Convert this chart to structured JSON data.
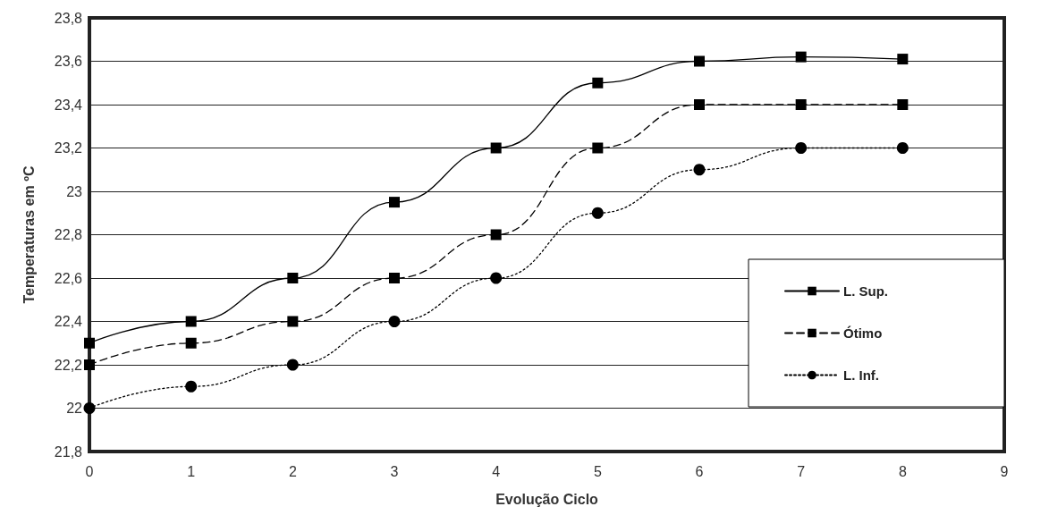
{
  "chart_data": {
    "type": "line",
    "xlabel": "Evolução Ciclo",
    "ylabel": "Temperaturas em ºC",
    "x": [
      0,
      1,
      2,
      3,
      4,
      5,
      6,
      7,
      8
    ],
    "series": [
      {
        "name": "L. Sup.",
        "color": "#000000",
        "marker": "square",
        "line_style": "solid",
        "values": [
          22.3,
          22.4,
          22.6,
          22.95,
          23.2,
          23.5,
          23.6,
          23.62,
          23.61
        ]
      },
      {
        "name": "Ótimo",
        "color": "#000000",
        "marker": "square",
        "line_style": "dashed",
        "values": [
          22.2,
          22.3,
          22.4,
          22.6,
          22.8,
          23.2,
          23.4,
          23.4,
          23.4
        ]
      },
      {
        "name": "L. Inf.",
        "color": "#000000",
        "marker": "circle",
        "line_style": "dotted",
        "values": [
          22.0,
          22.1,
          22.2,
          22.4,
          22.6,
          22.9,
          23.1,
          23.2,
          23.2
        ]
      }
    ],
    "xlim": [
      0,
      9
    ],
    "xticks": [
      0,
      1,
      2,
      3,
      4,
      5,
      6,
      7,
      8,
      9
    ],
    "ylim": [
      21.8,
      23.8
    ],
    "yticks": [
      {
        "value": 21.8,
        "label": "21,8"
      },
      {
        "value": 22,
        "label": "22"
      },
      {
        "value": 22.2,
        "label": "22,2"
      },
      {
        "value": 22.4,
        "label": "22,4"
      },
      {
        "value": 22.6,
        "label": "22,6"
      },
      {
        "value": 22.8,
        "label": "22,8"
      },
      {
        "value": 23,
        "label": "23"
      },
      {
        "value": 23.2,
        "label": "23,2"
      },
      {
        "value": 23.4,
        "label": "23,4"
      },
      {
        "value": 23.6,
        "label": "23,6"
      },
      {
        "value": 23.8,
        "label": "23,8"
      }
    ],
    "grid": "y",
    "legend": "bottom right"
  }
}
